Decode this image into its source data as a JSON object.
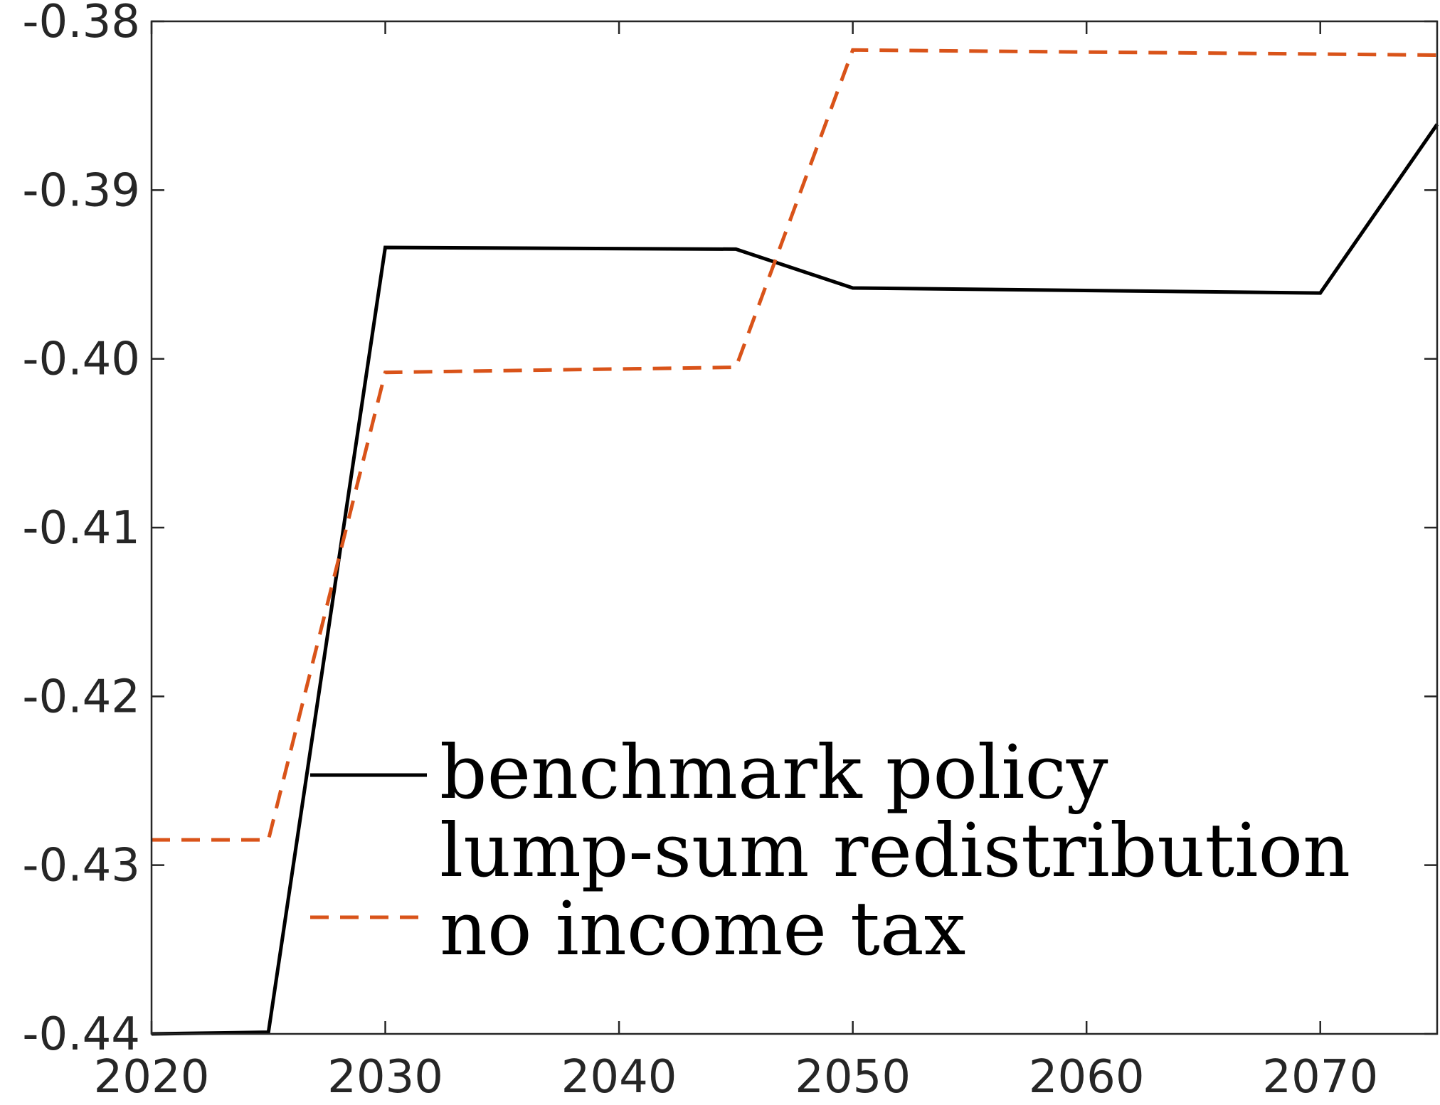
{
  "chart_data": {
    "type": "line",
    "title": "",
    "xlabel": "",
    "ylabel": "",
    "xlim": [
      2020,
      2075
    ],
    "ylim": [
      -0.44,
      -0.38
    ],
    "x_ticks": [
      "2020",
      "2030",
      "2040",
      "2050",
      "2060",
      "2070"
    ],
    "y_ticks": [
      "-0.38",
      "-0.39",
      "-0.40",
      "-0.41",
      "-0.42",
      "-0.43",
      "-0.44"
    ],
    "grid": false,
    "legend_position": "bottom-center",
    "series": [
      {
        "name": "benchmark policy",
        "style": "solid",
        "color": "#000000",
        "x": [
          2020,
          2025,
          2030,
          2045,
          2050,
          2070,
          2075
        ],
        "y": [
          -0.44,
          -0.4399,
          -0.3934,
          -0.3935,
          -0.3958,
          -0.3961,
          -0.3861
        ]
      },
      {
        "name": "lump-sum redistribution",
        "style": "none",
        "color": "#ffffff",
        "x": [],
        "y": []
      },
      {
        "name": "no income tax",
        "style": "dashed",
        "color": "#D95319",
        "x": [
          2020,
          2025,
          2030,
          2045,
          2050,
          2075
        ],
        "y": [
          -0.4285,
          -0.4285,
          -0.4008,
          -0.4005,
          -0.3817,
          -0.382
        ]
      }
    ]
  }
}
